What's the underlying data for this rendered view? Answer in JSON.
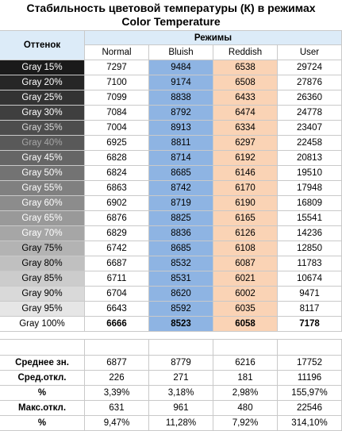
{
  "title_line1": "Стабильность цветовой температуры (К) в режимах",
  "title_line2": "Color Temperature",
  "headers": {
    "shade": "Оттенок",
    "modes": "Режимы",
    "normal": "Normal",
    "bluish": "Bluish",
    "reddish": "Reddish",
    "user": "User"
  },
  "chart_data": {
    "type": "table",
    "title": "Стабильность цветовой температуры (К) в режимах Color Temperature",
    "columns": [
      "Normal",
      "Bluish",
      "Reddish",
      "User"
    ],
    "rows": [
      {
        "label": "Gray 15%",
        "values": [
          "7297",
          "9484",
          "6538",
          "29724"
        ],
        "bg": "#1a1a1a",
        "fg": "#ffffff",
        "bold": false
      },
      {
        "label": "Gray 20%",
        "values": [
          "7100",
          "9174",
          "6508",
          "27876"
        ],
        "bg": "#262626",
        "fg": "#ffffff",
        "bold": false
      },
      {
        "label": "Gray 25%",
        "values": [
          "7099",
          "8838",
          "6433",
          "26360"
        ],
        "bg": "#333333",
        "fg": "#ffffff",
        "bold": false
      },
      {
        "label": "Gray 30%",
        "values": [
          "7084",
          "8792",
          "6474",
          "24778"
        ],
        "bg": "#3f3f3f",
        "fg": "#ffffff",
        "bold": false
      },
      {
        "label": "Gray 35%",
        "values": [
          "7004",
          "8913",
          "6334",
          "23407"
        ],
        "bg": "#4d4d4d",
        "fg": "#d9d9d9",
        "bold": false
      },
      {
        "label": "Gray 40%",
        "values": [
          "6925",
          "8811",
          "6297",
          "22458"
        ],
        "bg": "#595959",
        "fg": "#a6a6a6",
        "bold": false
      },
      {
        "label": "Gray 45%",
        "values": [
          "6828",
          "8714",
          "6192",
          "20813"
        ],
        "bg": "#666666",
        "fg": "#ffffff",
        "bold": false
      },
      {
        "label": "Gray 50%",
        "values": [
          "6824",
          "8685",
          "6146",
          "19510"
        ],
        "bg": "#737373",
        "fg": "#ffffff",
        "bold": false
      },
      {
        "label": "Gray 55%",
        "values": [
          "6863",
          "8742",
          "6170",
          "17948"
        ],
        "bg": "#808080",
        "fg": "#ffffff",
        "bold": false
      },
      {
        "label": "Gray 60%",
        "values": [
          "6902",
          "8719",
          "6190",
          "16809"
        ],
        "bg": "#8c8c8c",
        "fg": "#ffffff",
        "bold": false
      },
      {
        "label": "Gray 65%",
        "values": [
          "6876",
          "8825",
          "6165",
          "15541"
        ],
        "bg": "#999999",
        "fg": "#ffffff",
        "bold": false
      },
      {
        "label": "Gray 70%",
        "values": [
          "6829",
          "8836",
          "6126",
          "14236"
        ],
        "bg": "#a6a6a6",
        "fg": "#ffffff",
        "bold": false
      },
      {
        "label": "Gray 75%",
        "values": [
          "6742",
          "8685",
          "6108",
          "12850"
        ],
        "bg": "#b3b3b3",
        "fg": "#000000",
        "bold": false
      },
      {
        "label": "Gray 80%",
        "values": [
          "6687",
          "8532",
          "6087",
          "11783"
        ],
        "bg": "#c0c0c0",
        "fg": "#000000",
        "bold": false
      },
      {
        "label": "Gray 85%",
        "values": [
          "6711",
          "8531",
          "6021",
          "10674"
        ],
        "bg": "#cccccc",
        "fg": "#000000",
        "bold": false
      },
      {
        "label": "Gray 90%",
        "values": [
          "6704",
          "8620",
          "6002",
          "9471"
        ],
        "bg": "#d9d9d9",
        "fg": "#000000",
        "bold": false
      },
      {
        "label": "Gray 95%",
        "values": [
          "6643",
          "8592",
          "6035",
          "8117"
        ],
        "bg": "#e6e6e6",
        "fg": "#000000",
        "bold": false
      },
      {
        "label": "Gray 100%",
        "values": [
          "6666",
          "8523",
          "6058",
          "7178"
        ],
        "bg": "#ffffff",
        "fg": "#000000",
        "bold": true
      }
    ],
    "stats": [
      {
        "label": "Среднее зн.",
        "values": [
          "6877",
          "8779",
          "6216",
          "17752"
        ]
      },
      {
        "label": "Сред.откл.",
        "values": [
          "226",
          "271",
          "181",
          "11196"
        ]
      },
      {
        "label": "%",
        "values": [
          "3,39%",
          "3,18%",
          "2,98%",
          "155,97%"
        ]
      },
      {
        "label": "Макс.откл.",
        "values": [
          "631",
          "961",
          "480",
          "22546"
        ]
      },
      {
        "label": "%",
        "values": [
          "9,47%",
          "11,28%",
          "7,92%",
          "314,10%"
        ]
      }
    ]
  },
  "colors": {
    "header_bg": "#dcebf8",
    "bluish_bg": "#8eb4e3",
    "reddish_bg": "#fad3b5",
    "grid_line": "#c9c9c9"
  }
}
